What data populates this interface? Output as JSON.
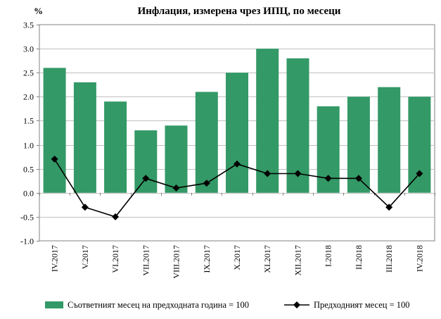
{
  "chart_data": {
    "type": "bar",
    "title": "Инфлация, измерена чрез ИПЦ, по месеци",
    "unit": "%",
    "categories": [
      "IV.2017",
      "V.2017",
      "VI.2017",
      "VII.2017",
      "VIII.2017",
      "IX.2017",
      "X.2017",
      "XI.2017",
      "XII.2017",
      "I.2018",
      "II.2018",
      "III.2018",
      "IV.2018"
    ],
    "series": [
      {
        "name": "Съответният месец на предходната година = 100",
        "type": "bar",
        "color": "#339966",
        "values": [
          2.6,
          2.3,
          1.9,
          1.3,
          1.4,
          2.1,
          2.5,
          3.0,
          2.8,
          1.8,
          2.0,
          2.2,
          2.0
        ]
      },
      {
        "name": "Предходният месец = 100",
        "type": "line",
        "color": "#000000",
        "values": [
          0.7,
          -0.3,
          -0.5,
          0.3,
          0.1,
          0.2,
          0.6,
          0.4,
          0.4,
          0.3,
          0.3,
          -0.3,
          0.4
        ]
      }
    ],
    "ylim": [
      -1.0,
      3.5
    ],
    "yticks": [
      "-1.0",
      "-0.5",
      "0.0",
      "0.5",
      "1.0",
      "1.5",
      "2.0",
      "2.5",
      "3.0",
      "3.5"
    ],
    "ytick_values": [
      -1.0,
      -0.5,
      0.0,
      0.5,
      1.0,
      1.5,
      2.0,
      2.5,
      3.0,
      3.5
    ],
    "grid": true,
    "legend_position": "bottom"
  }
}
